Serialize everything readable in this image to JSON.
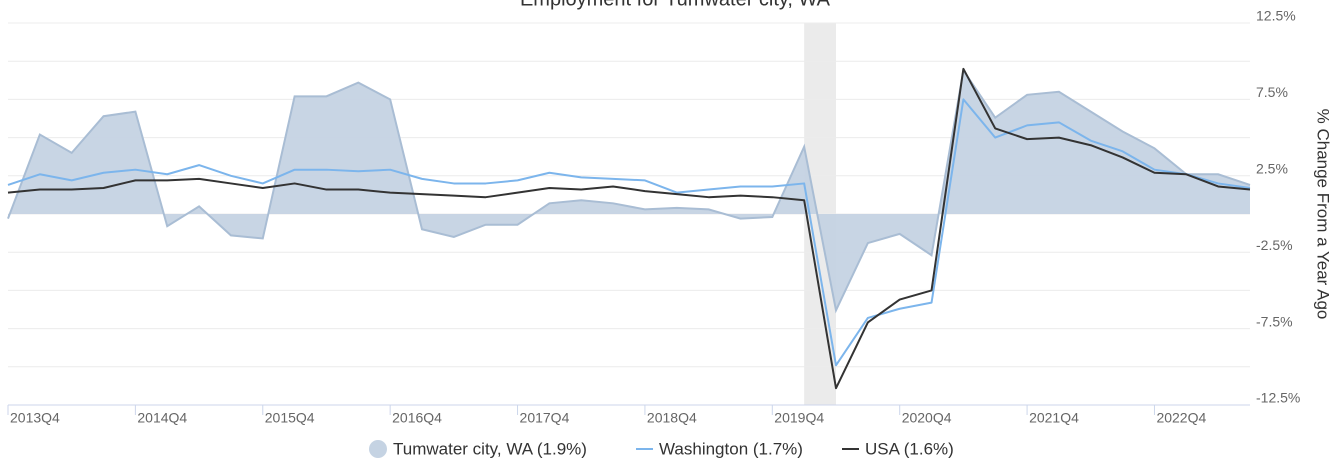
{
  "chart_data": {
    "type": "line",
    "title": "Employment for Tumwater city, WA",
    "y_axis_label": "% Change From a Year Ago",
    "categories": [
      "2013Q4",
      null,
      null,
      null,
      "2014Q4",
      null,
      null,
      null,
      "2015Q4",
      null,
      null,
      null,
      "2016Q4",
      null,
      null,
      null,
      "2017Q4",
      null,
      null,
      null,
      "2018Q4",
      null,
      null,
      null,
      "2019Q4",
      null,
      null,
      null,
      "2020Q4",
      null,
      null,
      null,
      "2021Q4",
      null,
      null,
      null,
      "2022Q4",
      null,
      null,
      null
    ],
    "series": [
      {
        "name": "Tumwater city, WA (1.9%)",
        "kind": "area",
        "color": "#c5d3e3",
        "stroke": "#a9bdd4",
        "values": [
          -0.3,
          5.2,
          4.0,
          6.4,
          6.7,
          -0.8,
          0.5,
          -1.4,
          -1.6,
          7.7,
          7.7,
          8.6,
          7.5,
          -1.0,
          -1.5,
          -0.7,
          -0.7,
          0.7,
          0.9,
          0.7,
          0.3,
          0.4,
          0.3,
          -0.3,
          -0.2,
          4.4,
          -6.3,
          -1.9,
          -1.3,
          -2.7,
          9.4,
          6.3,
          7.8,
          8.0,
          6.7,
          5.4,
          4.3,
          2.6,
          2.6,
          1.9
        ]
      },
      {
        "name": "Washington (1.7%)",
        "kind": "line",
        "color": "#7cb5ec",
        "values": [
          1.9,
          2.6,
          2.2,
          2.7,
          2.9,
          2.6,
          3.2,
          2.5,
          2.0,
          2.9,
          2.9,
          2.8,
          2.9,
          2.3,
          2.0,
          2.0,
          2.2,
          2.7,
          2.4,
          2.3,
          2.2,
          1.4,
          1.6,
          1.8,
          1.8,
          2.0,
          -9.9,
          -6.8,
          -6.2,
          -5.8,
          7.5,
          5.0,
          5.8,
          6.0,
          4.8,
          4.1,
          2.9,
          2.6,
          2.0,
          1.7
        ]
      },
      {
        "name": "USA (1.6%)",
        "kind": "line",
        "color": "#333333",
        "values": [
          1.4,
          1.6,
          1.6,
          1.7,
          2.2,
          2.2,
          2.3,
          2.0,
          1.7,
          2.0,
          1.6,
          1.6,
          1.4,
          1.3,
          1.2,
          1.1,
          1.4,
          1.7,
          1.6,
          1.8,
          1.5,
          1.3,
          1.1,
          1.2,
          1.1,
          0.9,
          -11.4,
          -7.1,
          -5.6,
          -5.0,
          9.5,
          5.6,
          4.9,
          5.0,
          4.5,
          3.7,
          2.7,
          2.6,
          1.8,
          1.6
        ]
      }
    ],
    "recession": {
      "start": "2020Q1",
      "end": "2020Q2",
      "start_index": 25,
      "end_index": 26,
      "color": "#ebebeb"
    },
    "ylim": [
      -12.5,
      12.5
    ],
    "yticks": [
      {
        "value": 12.5,
        "label": "12.5%"
      },
      {
        "value": 7.5,
        "label": "7.5%"
      },
      {
        "value": 2.5,
        "label": "2.5%"
      },
      {
        "value": -2.5,
        "label": "-2.5%"
      },
      {
        "value": -7.5,
        "label": "-7.5%"
      },
      {
        "value": -12.5,
        "label": "-12.5%"
      }
    ],
    "minor_yticks": [
      10,
      5,
      0,
      -5,
      -10
    ],
    "grid": true,
    "legend": "bottom"
  }
}
